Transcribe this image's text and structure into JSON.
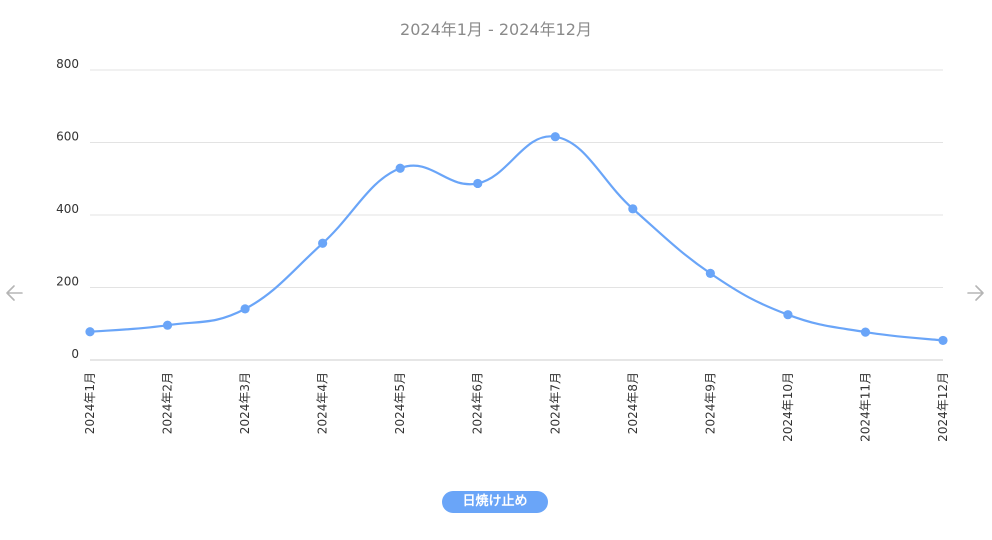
{
  "range_label": "2024年1月 - 2024年12月",
  "colors": {
    "series": "#6aa5f8",
    "grid": "#e3e3e3",
    "axis_text": "#333333",
    "arrow": "#b5b5b5"
  },
  "icons": {
    "prev": "arrow-left-icon",
    "next": "arrow-right-icon"
  },
  "chart_data": {
    "type": "line",
    "smooth": true,
    "categories": [
      "2024年1月",
      "2024年2月",
      "2024年3月",
      "2024年4月",
      "2024年5月",
      "2024年6月",
      "2024年7月",
      "2024年8月",
      "2024年9月",
      "2024年10月",
      "2024年11月",
      "2024年12月"
    ],
    "series": [
      {
        "name": "日焼け止め",
        "values": [
          78,
          96,
          141,
          322,
          529,
          487,
          616,
          417,
          239,
          125,
          77,
          54
        ]
      }
    ],
    "title": "",
    "xlabel": "",
    "ylabel": "",
    "ylim": [
      0,
      800
    ],
    "yticks": [
      0,
      200,
      400,
      600,
      800
    ],
    "grid": true,
    "legend_position": "bottom"
  }
}
